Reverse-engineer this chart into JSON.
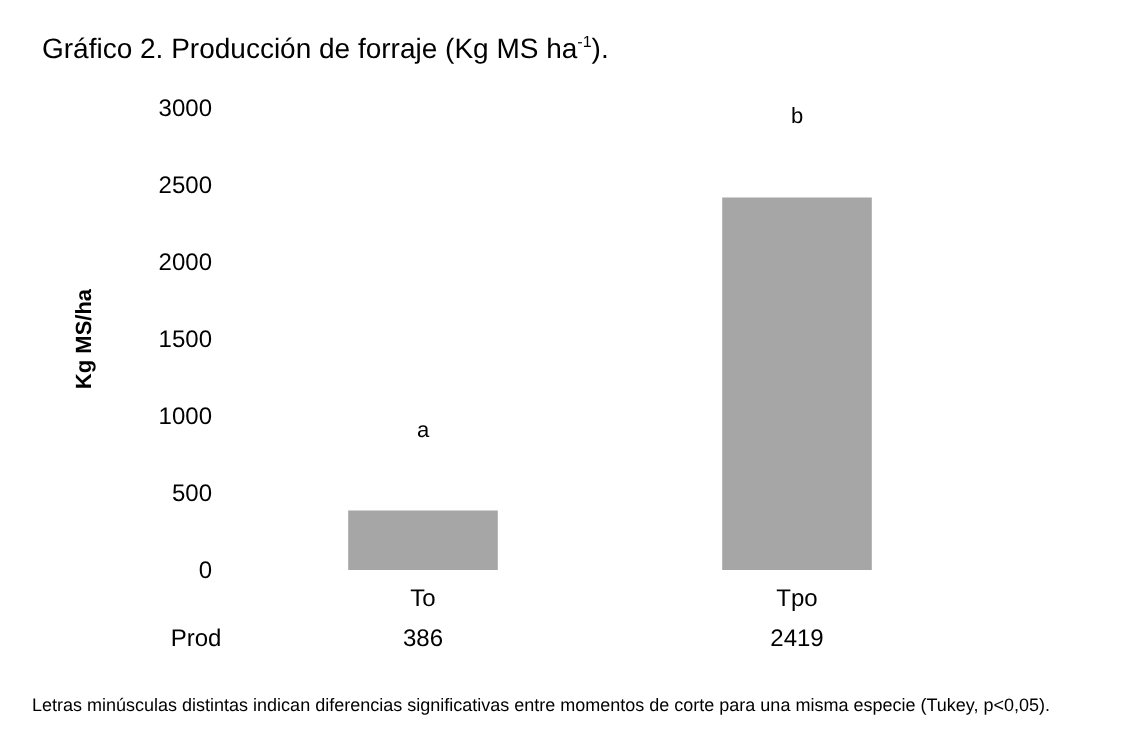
{
  "chart_data": {
    "type": "bar",
    "title": "Gráfico 2. Producción de forraje (Kg MS ha$^{-1}$).",
    "ylabel": "Kg MS/ha",
    "categories": [
      "To",
      "Tpo"
    ],
    "series": [
      {
        "name": "Prod",
        "color": "#a6a6a6",
        "values": [
          386,
          2419
        ]
      }
    ],
    "ylim": [
      0,
      3000
    ],
    "yticks": [
      0,
      500,
      1000,
      1500,
      2000,
      2500,
      3000
    ],
    "grid": false,
    "legend": false,
    "data_labels": true,
    "annotations": [
      "a",
      "b",
      "Letras minúsculas distintas indican diferencias significativas entre momentos de corte para una misma especie (Tukey, p<0,05)."
    ]
  }
}
